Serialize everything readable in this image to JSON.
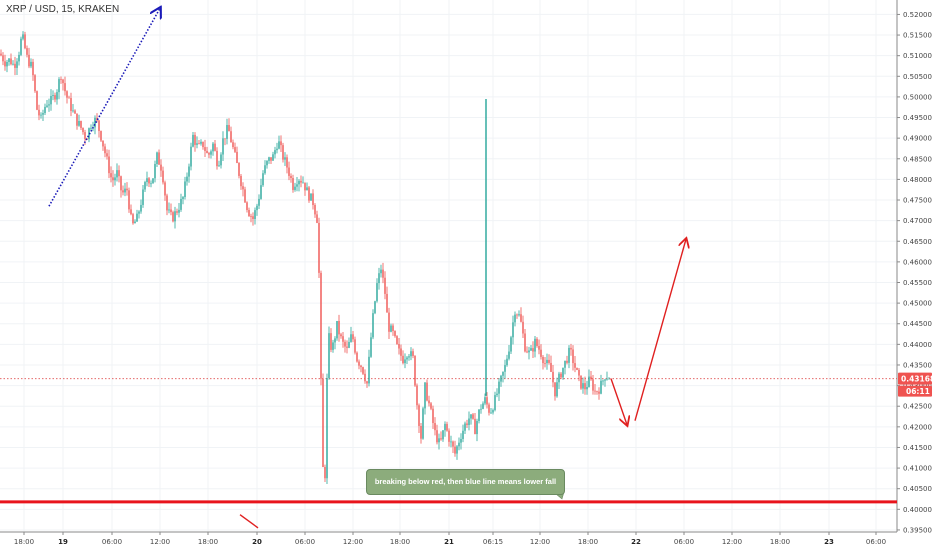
{
  "chart_data": {
    "type": "candlestick",
    "title": "XRP / USD, 15, KRAKEN",
    "ylim": [
      0.3945,
      0.5235
    ],
    "price_ticks": [
      "0.52000",
      "0.51500",
      "0.51000",
      "0.50500",
      "0.50000",
      "0.49500",
      "0.49000",
      "0.48500",
      "0.48000",
      "0.47500",
      "0.47000",
      "0.46500",
      "0.46000",
      "0.45500",
      "0.45000",
      "0.44500",
      "0.44000",
      "0.43500",
      "0.43000",
      "0.42500",
      "0.42000",
      "0.41500",
      "0.41000",
      "0.40500",
      "0.40000",
      "0.39500"
    ],
    "time_ticks": [
      {
        "label": "18:00",
        "bold": false
      },
      {
        "label": "19",
        "bold": true
      },
      {
        "label": "06:00",
        "bold": false
      },
      {
        "label": "12:00",
        "bold": false
      },
      {
        "label": "18:00",
        "bold": false
      },
      {
        "label": "20",
        "bold": true
      },
      {
        "label": "06:00",
        "bold": false
      },
      {
        "label": "12:00",
        "bold": false
      },
      {
        "label": "18:00",
        "bold": false
      },
      {
        "label": "21",
        "bold": true
      },
      {
        "label": "06:15",
        "bold": false
      },
      {
        "label": "12:00",
        "bold": false
      },
      {
        "label": "18:00",
        "bold": false
      },
      {
        "label": "22",
        "bold": true
      },
      {
        "label": "06:00",
        "bold": false
      },
      {
        "label": "12:00",
        "bold": false
      },
      {
        "label": "18:00",
        "bold": false
      },
      {
        "label": "23",
        "bold": true
      },
      {
        "label": "06:00",
        "bold": false
      }
    ],
    "current_price": "0.43168",
    "countdown": "06:11",
    "support_level": 0.4018,
    "anchors": [
      [
        0,
        0.5105
      ],
      [
        5,
        0.5085
      ],
      [
        10,
        0.509
      ],
      [
        14,
        0.5075
      ],
      [
        19,
        0.511
      ],
      [
        22,
        0.515
      ],
      [
        27,
        0.5095
      ],
      [
        32,
        0.507
      ],
      [
        37,
        0.497
      ],
      [
        41,
        0.4945
      ],
      [
        46,
        0.4985
      ],
      [
        51,
        0.499
      ],
      [
        56,
        0.501
      ],
      [
        61,
        0.5055
      ],
      [
        66,
        0.5005
      ],
      [
        71,
        0.4975
      ],
      [
        76,
        0.4945
      ],
      [
        81,
        0.4925
      ],
      [
        86,
        0.49
      ],
      [
        91,
        0.4935
      ],
      [
        96,
        0.4945
      ],
      [
        101,
        0.4905
      ],
      [
        107,
        0.4845
      ],
      [
        112,
        0.4795
      ],
      [
        117,
        0.4815
      ],
      [
        122,
        0.4765
      ],
      [
        127,
        0.4775
      ],
      [
        132,
        0.4685
      ],
      [
        137,
        0.4705
      ],
      [
        142,
        0.4755
      ],
      [
        147,
        0.4805
      ],
      [
        152,
        0.4795
      ],
      [
        157,
        0.4855
      ],
      [
        162,
        0.4825
      ],
      [
        167,
        0.4725
      ],
      [
        172,
        0.4705
      ],
      [
        177,
        0.4725
      ],
      [
        183,
        0.4755
      ],
      [
        188,
        0.4825
      ],
      [
        193,
        0.4905
      ],
      [
        198,
        0.4875
      ],
      [
        203,
        0.4885
      ],
      [
        208,
        0.4855
      ],
      [
        213,
        0.4885
      ],
      [
        218,
        0.4835
      ],
      [
        223,
        0.4895
      ],
      [
        228,
        0.4925
      ],
      [
        233,
        0.4875
      ],
      [
        238,
        0.4825
      ],
      [
        243,
        0.4775
      ],
      [
        248,
        0.4725
      ],
      [
        253,
        0.4705
      ],
      [
        258,
        0.4745
      ],
      [
        263,
        0.4815
      ],
      [
        268,
        0.4845
      ],
      [
        273,
        0.4855
      ],
      [
        278,
        0.4895
      ],
      [
        283,
        0.4855
      ],
      [
        288,
        0.4825
      ],
      [
        293,
        0.4785
      ],
      [
        298,
        0.4805
      ],
      [
        303,
        0.4795
      ],
      [
        308,
        0.4765
      ],
      [
        313,
        0.4745
      ],
      [
        317,
        0.4705
      ],
      [
        320,
        0.4505
      ],
      [
        322,
        0.4105
      ],
      [
        325,
        0.4085
      ],
      [
        328,
        0.4425
      ],
      [
        332,
        0.4385
      ],
      [
        337,
        0.4445
      ],
      [
        342,
        0.4405
      ],
      [
        347,
        0.4385
      ],
      [
        352,
        0.4425
      ],
      [
        357,
        0.4365
      ],
      [
        362,
        0.4345
      ],
      [
        367,
        0.4305
      ],
      [
        372,
        0.4445
      ],
      [
        377,
        0.4545
      ],
      [
        381,
        0.4585
      ],
      [
        385,
        0.4525
      ],
      [
        388,
        0.4445
      ],
      [
        393,
        0.4425
      ],
      [
        398,
        0.4385
      ],
      [
        403,
        0.4365
      ],
      [
        408,
        0.4385
      ],
      [
        413,
        0.4365
      ],
      [
        417,
        0.4255
      ],
      [
        421,
        0.4175
      ],
      [
        425,
        0.4295
      ],
      [
        430,
        0.4245
      ],
      [
        435,
        0.4185
      ],
      [
        440,
        0.4155
      ],
      [
        445,
        0.4205
      ],
      [
        450,
        0.4165
      ],
      [
        455,
        0.4135
      ],
      [
        460,
        0.4175
      ],
      [
        465,
        0.4205
      ],
      [
        470,
        0.4225
      ],
      [
        475,
        0.4195
      ],
      [
        480,
        0.4245
      ],
      [
        485,
        0.4265
      ],
      [
        490,
        0.4235
      ],
      [
        495,
        0.4265
      ],
      [
        500,
        0.4305
      ],
      [
        505,
        0.4345
      ],
      [
        510,
        0.4405
      ],
      [
        515,
        0.4485
      ],
      [
        520,
        0.4465
      ],
      [
        525,
        0.4395
      ],
      [
        530,
        0.4375
      ],
      [
        535,
        0.4405
      ],
      [
        540,
        0.4385
      ],
      [
        545,
        0.4355
      ],
      [
        550,
        0.4345
      ],
      [
        555,
        0.4285
      ],
      [
        560,
        0.4325
      ],
      [
        565,
        0.4355
      ],
      [
        570,
        0.4385
      ],
      [
        575,
        0.4345
      ],
      [
        580,
        0.4305
      ],
      [
        585,
        0.4295
      ],
      [
        590,
        0.4315
      ],
      [
        595,
        0.4285
      ],
      [
        600,
        0.4295
      ],
      [
        605,
        0.4325
      ],
      [
        609,
        0.4317
      ]
    ],
    "drawn_lines": [
      {
        "color": "#1a1ab8",
        "style": "dotted",
        "from": [
          49,
          0.4735
        ],
        "to": [
          160,
          0.5215
        ],
        "arrow": true
      },
      {
        "color": "#e02020",
        "style": "solid",
        "from": [
          611,
          0.4317
        ],
        "to": [
          627,
          0.4205
        ],
        "arrow": true
      },
      {
        "color": "#e02020",
        "style": "solid",
        "from": [
          635,
          0.4215
        ],
        "to": [
          686,
          0.4655
        ],
        "arrow": true
      },
      {
        "color": "#e02020",
        "style": "solid",
        "from": [
          240,
          0.3987
        ],
        "to": [
          258,
          0.3955
        ],
        "arrow": false
      },
      {
        "color": "#26a69a",
        "style": "solid",
        "from": [
          486,
          0.4995
        ],
        "to": [
          486,
          0.4275
        ],
        "arrow": false
      }
    ],
    "annotation": "breaking below red, then blue line means lower fall",
    "colors": {
      "up": "#26a69a",
      "down": "#ef5350",
      "support": "#e8141c"
    }
  }
}
